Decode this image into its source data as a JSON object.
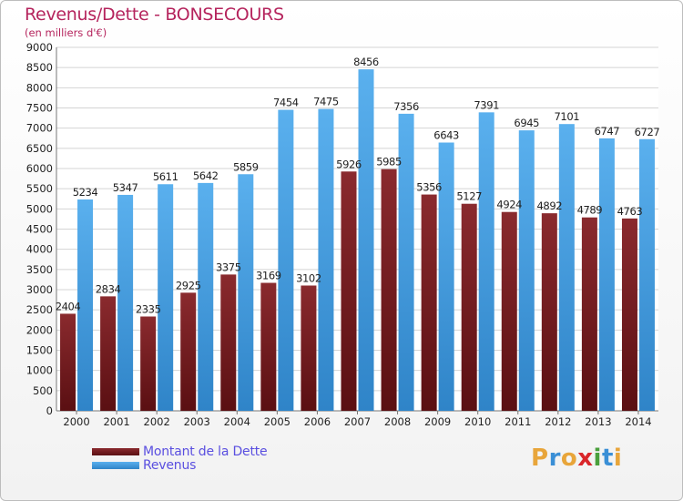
{
  "chart_data": {
    "type": "bar",
    "title": "Revenus/Dette - BONSECOURS",
    "subtitle": "(en milliers d'€)",
    "categories": [
      "2000",
      "2001",
      "2002",
      "2003",
      "2004",
      "2005",
      "2006",
      "2007",
      "2008",
      "2009",
      "2010",
      "2011",
      "2012",
      "2013",
      "2014"
    ],
    "series": [
      {
        "name": "Montant de la Dette",
        "color": "#7a1e22",
        "values": [
          2404,
          2834,
          2335,
          2925,
          3375,
          3169,
          3102,
          5926,
          5985,
          5356,
          5127,
          4924,
          4892,
          4789,
          4763
        ],
        "labels": [
          "2404",
          "2834",
          "2335",
          "2925",
          "3375",
          "3169",
          "3102",
          "5926",
          "5985",
          "5356",
          "5127",
          "4924",
          "4892",
          "4789",
          "4763"
        ]
      },
      {
        "name": "Revenus",
        "color": "#4aa3e6",
        "values": [
          5234,
          5347,
          5611,
          5642,
          5859,
          7454,
          7475,
          8456,
          7356,
          6643,
          7391,
          6945,
          7101,
          6747,
          6727
        ],
        "labels": [
          "5234",
          "5347",
          "5611",
          "5642",
          "5859",
          "7454",
          "7475",
          "8456",
          "7356",
          "6643",
          "7391",
          "6945",
          "7101",
          "6747",
          "6727"
        ]
      }
    ],
    "ylim": [
      0,
      9000
    ],
    "yticks": [
      0,
      500,
      1000,
      1500,
      2000,
      2500,
      3000,
      3500,
      4000,
      4500,
      5000,
      5500,
      6000,
      6500,
      7000,
      7500,
      8000,
      8500,
      9000
    ],
    "grid": true,
    "legend_position": "bottom-left"
  },
  "branding": {
    "logo_letters": [
      "P",
      "r",
      "o",
      "x",
      "i",
      "t",
      "i"
    ],
    "logo_colors": [
      "#e8a53a",
      "#3a8fd6",
      "#e8a53a",
      "#d9262a",
      "#4a9f3c",
      "#3a8fd6",
      "#e8a53a"
    ]
  }
}
